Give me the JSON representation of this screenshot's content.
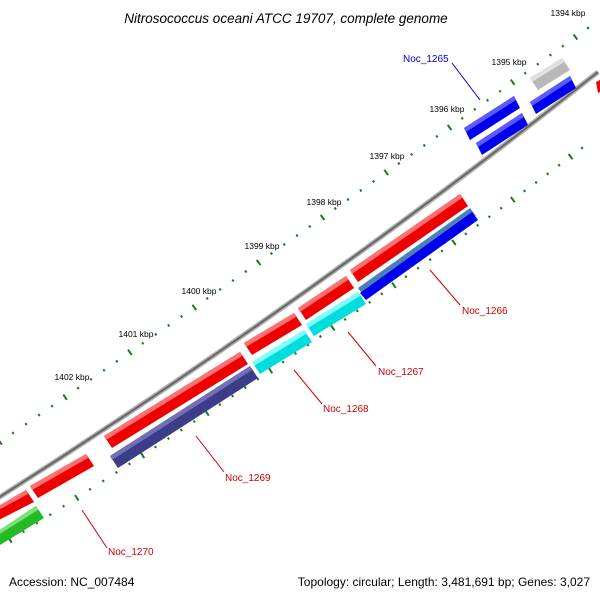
{
  "title": "Nitrosococcus oceani ATCC 19707, complete genome",
  "footer": {
    "accession": "Accession: NC_007484",
    "summary": "Topology: circular; Length: 3,481,691 bp; Genes: 3,027"
  },
  "kbp_labels": [
    "1394 kbp",
    "1395 kbp",
    "1396 kbp",
    "1397 kbp",
    "1398 kbp",
    "1399 kbp",
    "1400 kbp",
    "1401 kbp",
    "1402 kbp"
  ],
  "gene_labels": [
    {
      "text": "Noc_1265",
      "color": "#0000cc"
    },
    {
      "text": "Noc_1266",
      "color": "#cc0000"
    },
    {
      "text": "Noc_1267",
      "color": "#cc0000"
    },
    {
      "text": "Noc_1268",
      "color": "#cc0000"
    },
    {
      "text": "Noc_1269",
      "color": "#cc0000"
    },
    {
      "text": "Noc_1270",
      "color": "#cc0000"
    }
  ],
  "colors": {
    "backbone": "#808080",
    "tick": "#1a7a1a",
    "red": "#ee0000",
    "blue": "#0000ee",
    "steelblue": "#4a80b8",
    "cyan": "#00eeee",
    "navy": "#3c3c88",
    "green": "#22bb22",
    "gray": "#b8b8b8"
  }
}
